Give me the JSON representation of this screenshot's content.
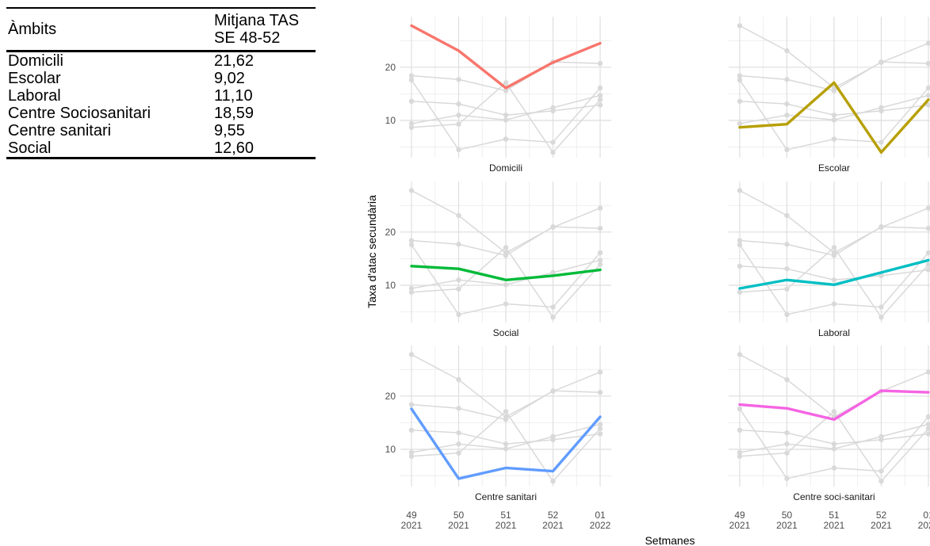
{
  "table": {
    "headers": [
      "Àmbits",
      "Mitjana TAS",
      "SE 48-52"
    ],
    "rows": [
      {
        "area": "Domicili",
        "value": "21,62"
      },
      {
        "area": "Escolar",
        "value": "9,02"
      },
      {
        "area": "Laboral",
        "value": "11,10"
      },
      {
        "area": "Centre Sociosanitari",
        "value": "18,59"
      },
      {
        "area": "Centre sanitari",
        "value": "9,55"
      },
      {
        "area": "Social",
        "value": "12,60"
      }
    ]
  },
  "chart_data": {
    "type": "line",
    "xlabel": "Setmanes",
    "ylabel": "Taxa d'atac secundària",
    "x": [
      {
        "week": "49",
        "year": "2021"
      },
      {
        "week": "50",
        "year": "2021"
      },
      {
        "week": "51",
        "year": "2021"
      },
      {
        "week": "52",
        "year": "2021"
      },
      {
        "week": "01",
        "year": "2022"
      }
    ],
    "yticks": [
      10,
      20
    ],
    "ylim": [
      3,
      29.5
    ],
    "grid": true,
    "series": [
      {
        "name": "Domicili",
        "color": "#f8766d",
        "values": [
          27.8,
          23.1,
          16.1,
          20.9,
          24.5
        ]
      },
      {
        "name": "Escolar",
        "color": "#b79f00",
        "values": [
          8.7,
          9.3,
          17.1,
          4.0,
          13.9
        ]
      },
      {
        "name": "Social",
        "color": "#00ba38",
        "values": [
          13.6,
          13.1,
          11.0,
          11.8,
          12.9
        ]
      },
      {
        "name": "Laboral",
        "color": "#00bfc4",
        "values": [
          9.4,
          11.0,
          10.1,
          12.4,
          14.7
        ]
      },
      {
        "name": "Centre sanitari",
        "color": "#619cff",
        "values": [
          17.6,
          4.5,
          6.5,
          5.9,
          16.1
        ]
      },
      {
        "name": "Centre soci-sanitari",
        "color": "#f564e3",
        "values": [
          18.4,
          17.7,
          15.6,
          21.0,
          20.7
        ]
      }
    ]
  }
}
